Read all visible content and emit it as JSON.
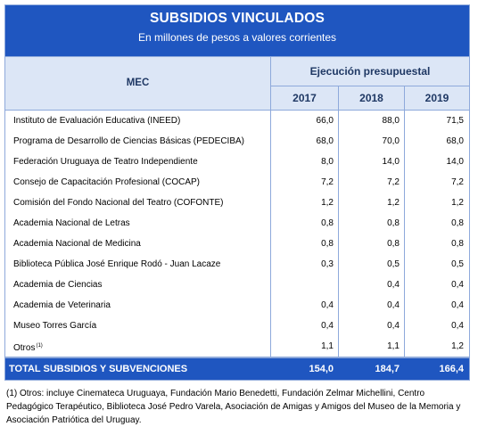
{
  "title": "SUBSIDIOS VINCULADOS",
  "subtitle": "En millones de pesos a valores corrientes",
  "header": {
    "entity": "MEC",
    "group": "Ejecución presupuestal",
    "years": [
      "2017",
      "2018",
      "2019"
    ]
  },
  "rows": [
    {
      "label": "Instituto de Evaluación Educativa (INEED)",
      "v2017": "66,0",
      "v2018": "88,0",
      "v2019": "71,5"
    },
    {
      "label": "Programa de Desarrollo de Ciencias Básicas (PEDECIBA)",
      "v2017": "68,0",
      "v2018": "70,0",
      "v2019": "68,0"
    },
    {
      "label": "Federación Uruguaya de Teatro Independiente",
      "v2017": "8,0",
      "v2018": "14,0",
      "v2019": "14,0"
    },
    {
      "label": "Consejo de Capacitación Profesional (COCAP)",
      "v2017": "7,2",
      "v2018": "7,2",
      "v2019": "7,2"
    },
    {
      "label": "Comisión del Fondo Nacional del Teatro (COFONTE)",
      "v2017": "1,2",
      "v2018": "1,2",
      "v2019": "1,2"
    },
    {
      "label": "Academia Nacional de Letras",
      "v2017": "0,8",
      "v2018": "0,8",
      "v2019": "0,8"
    },
    {
      "label": "Academia Nacional de Medicina",
      "v2017": "0,8",
      "v2018": "0,8",
      "v2019": "0,8"
    },
    {
      "label": "Biblioteca Pública José Enrique Rodó - Juan Lacaze",
      "v2017": "0,3",
      "v2018": "0,5",
      "v2019": "0,5"
    },
    {
      "label": "Academia de Ciencias",
      "v2017": "",
      "v2018": "0,4",
      "v2019": "0,4"
    },
    {
      "label": "Academia de Veterinaria",
      "v2017": "0,4",
      "v2018": "0,4",
      "v2019": "0,4"
    },
    {
      "label": "Museo Torres García",
      "v2017": "0,4",
      "v2018": "0,4",
      "v2019": "0,4"
    },
    {
      "label": "Otros",
      "sup": "(1)",
      "v2017": "1,1",
      "v2018": "1,1",
      "v2019": "1,2"
    }
  ],
  "total": {
    "label": "TOTAL SUBSIDIOS Y SUBVENCIONES",
    "v2017": "154,0",
    "v2018": "184,7",
    "v2019": "166,4"
  },
  "footnote": "(1) Otros: incluye Cinemateca Uruguaya, Fundación Mario Benedetti, Fundación Zelmar Michellini, Centro Pedagógico Terapéutico, Biblioteca José Pedro Varela, Asociación de Amigas y Amigos del Museo de la Memoria y Asociación Patriótica del Uruguay.",
  "colors": {
    "header_blue": "#1f56c0",
    "subheader_fill": "#dce6f6",
    "border": "#8ea9db"
  }
}
